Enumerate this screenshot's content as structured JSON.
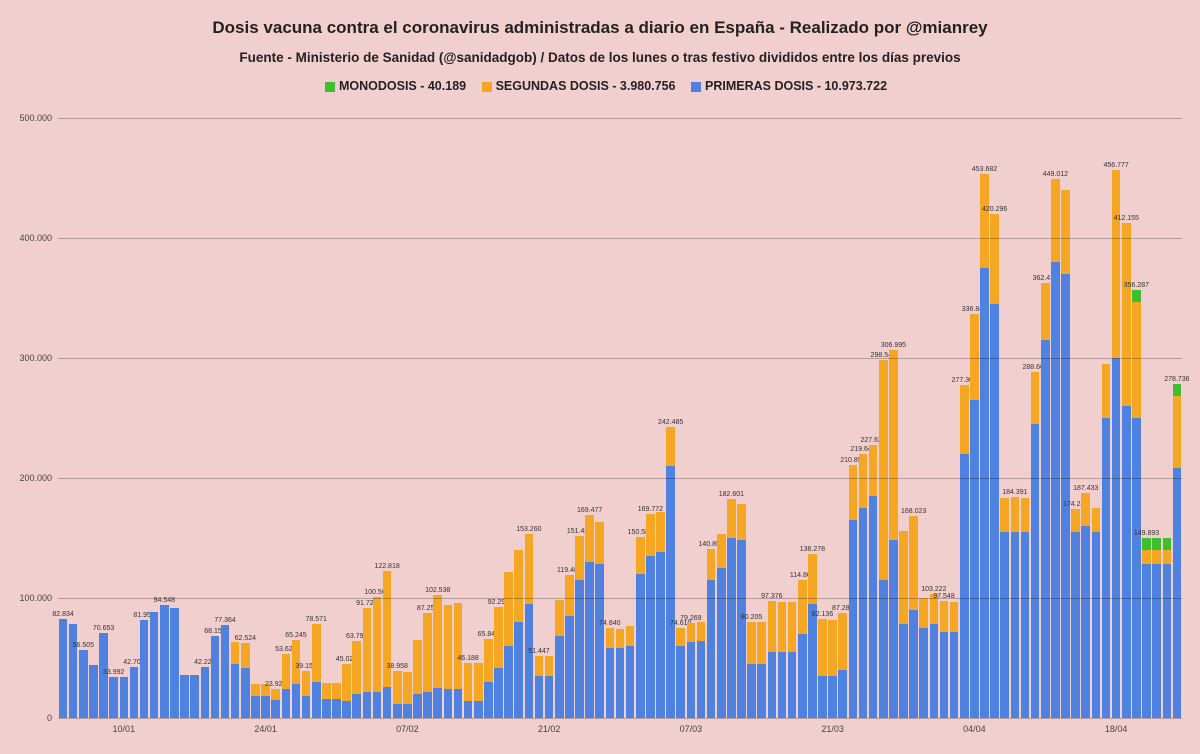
{
  "background_color": "#f2cfcf",
  "title": "Dosis vacuna contra el coronavirus administradas a diario en España - Realizado por @mianrey",
  "title_fontsize": 17,
  "subtitle": "Fuente - Ministerio de Sanidad (@sanidadgob) / Datos de los lunes o tras festivo divididos entre los días previos",
  "subtitle_fontsize": 13.5,
  "legend": {
    "items": [
      {
        "label": "MONODOSIS - 40.189",
        "color": "#3fbf2f"
      },
      {
        "label": "SEGUNDAS DOSIS - 3.980.756",
        "color": "#f5a623"
      },
      {
        "label": "PRIMERAS DOSIS - 10.973.722",
        "color": "#4f81e0"
      }
    ],
    "fontsize": 12.5
  },
  "chart": {
    "type": "stacked-bar",
    "ylim": [
      0,
      500000
    ],
    "ytick_step": 100000,
    "ytick_format": "thousand_dot",
    "grid_color": "rgba(0,0,0,0.25)",
    "bar_gap_ratio": 0.15,
    "label_fontsize": 7,
    "axis_fontsize": 9,
    "series_colors": {
      "primeras": "#4f81e0",
      "segundas": "#f5a623",
      "monodosis": "#3fbf2f"
    },
    "x_ticks": [
      {
        "index": 6,
        "label": "10/01"
      },
      {
        "index": 20,
        "label": "24/01"
      },
      {
        "index": 34,
        "label": "07/02"
      },
      {
        "index": 48,
        "label": "21/02"
      },
      {
        "index": 62,
        "label": "07/03"
      },
      {
        "index": 76,
        "label": "21/03"
      },
      {
        "index": 90,
        "label": "04/04"
      },
      {
        "index": 104,
        "label": "18/04"
      }
    ],
    "bars": [
      {
        "label": "82.834",
        "primeras": 82834,
        "segundas": 0,
        "monodosis": 0
      },
      {
        "label": "",
        "primeras": 78000,
        "segundas": 0,
        "monodosis": 0
      },
      {
        "label": "56.505",
        "primeras": 56505,
        "segundas": 0,
        "monodosis": 0
      },
      {
        "label": "",
        "primeras": 44000,
        "segundas": 0,
        "monodosis": 0
      },
      {
        "label": "70.653",
        "primeras": 70653,
        "segundas": 0,
        "monodosis": 0
      },
      {
        "label": "33.992",
        "primeras": 33992,
        "segundas": 0,
        "monodosis": 0
      },
      {
        "label": "",
        "primeras": 34000,
        "segundas": 0,
        "monodosis": 0
      },
      {
        "label": "42.705",
        "primeras": 42705,
        "segundas": 0,
        "monodosis": 0
      },
      {
        "label": "81.950",
        "primeras": 81950,
        "segundas": 0,
        "monodosis": 0
      },
      {
        "label": "",
        "primeras": 88000,
        "segundas": 0,
        "monodosis": 0
      },
      {
        "label": "94.548",
        "primeras": 94548,
        "segundas": 0,
        "monodosis": 0
      },
      {
        "label": "",
        "primeras": 92000,
        "segundas": 0,
        "monodosis": 0
      },
      {
        "label": "",
        "primeras": 36000,
        "segundas": 0,
        "monodosis": 0
      },
      {
        "label": "",
        "primeras": 36000,
        "segundas": 0,
        "monodosis": 0
      },
      {
        "label": "42.226",
        "primeras": 42226,
        "segundas": 0,
        "monodosis": 0
      },
      {
        "label": "68.155",
        "primeras": 68155,
        "segundas": 0,
        "monodosis": 0
      },
      {
        "label": "77.364",
        "primeras": 77364,
        "segundas": 0,
        "monodosis": 0
      },
      {
        "label": "",
        "primeras": 45000,
        "segundas": 18000,
        "monodosis": 0
      },
      {
        "label": "62.524",
        "primeras": 42000,
        "segundas": 20524,
        "monodosis": 0
      },
      {
        "label": "",
        "primeras": 18000,
        "segundas": 10000,
        "monodosis": 0
      },
      {
        "label": "",
        "primeras": 18000,
        "segundas": 10000,
        "monodosis": 0
      },
      {
        "label": "23.923",
        "primeras": 15000,
        "segundas": 8923,
        "monodosis": 0
      },
      {
        "label": "53.623",
        "primeras": 24000,
        "segundas": 29623,
        "monodosis": 0
      },
      {
        "label": "65.245",
        "primeras": 28000,
        "segundas": 37245,
        "monodosis": 0
      },
      {
        "label": "39.157",
        "primeras": 18000,
        "segundas": 21157,
        "monodosis": 0
      },
      {
        "label": "78.571",
        "primeras": 30000,
        "segundas": 48571,
        "monodosis": 0
      },
      {
        "label": "",
        "primeras": 16000,
        "segundas": 13000,
        "monodosis": 0
      },
      {
        "label": "",
        "primeras": 16000,
        "segundas": 13000,
        "monodosis": 0
      },
      {
        "label": "45.024",
        "primeras": 14000,
        "segundas": 31024,
        "monodosis": 0
      },
      {
        "label": "63.793",
        "primeras": 20000,
        "segundas": 43793,
        "monodosis": 0
      },
      {
        "label": "91.724",
        "primeras": 22000,
        "segundas": 69724,
        "monodosis": 0
      },
      {
        "label": "100.564",
        "primeras": 22000,
        "segundas": 78564,
        "monodosis": 0
      },
      {
        "label": "122.818",
        "primeras": 26000,
        "segundas": 96818,
        "monodosis": 0
      },
      {
        "label": "38.958",
        "primeras": 12000,
        "segundas": 26958,
        "monodosis": 0
      },
      {
        "label": "",
        "primeras": 12000,
        "segundas": 26000,
        "monodosis": 0
      },
      {
        "label": "",
        "primeras": 20000,
        "segundas": 45000,
        "monodosis": 0
      },
      {
        "label": "87.258",
        "primeras": 22000,
        "segundas": 65258,
        "monodosis": 0
      },
      {
        "label": "102.538",
        "primeras": 25000,
        "segundas": 77538,
        "monodosis": 0
      },
      {
        "label": "",
        "primeras": 24000,
        "segundas": 70000,
        "monodosis": 0
      },
      {
        "label": "",
        "primeras": 24000,
        "segundas": 72000,
        "monodosis": 0
      },
      {
        "label": "46.188",
        "primeras": 14000,
        "segundas": 32188,
        "monodosis": 0
      },
      {
        "label": "",
        "primeras": 14000,
        "segundas": 32000,
        "monodosis": 0
      },
      {
        "label": "65.845",
        "primeras": 30000,
        "segundas": 35845,
        "monodosis": 0
      },
      {
        "label": "92.294",
        "primeras": 42000,
        "segundas": 50294,
        "monodosis": 0
      },
      {
        "label": "",
        "primeras": 60000,
        "segundas": 62000,
        "monodosis": 0
      },
      {
        "label": "",
        "primeras": 80000,
        "segundas": 60000,
        "monodosis": 0
      },
      {
        "label": "153.260",
        "primeras": 95000,
        "segundas": 58260,
        "monodosis": 0
      },
      {
        "label": "51.447",
        "primeras": 35000,
        "segundas": 16447,
        "monodosis": 0
      },
      {
        "label": "",
        "primeras": 35000,
        "segundas": 17000,
        "monodosis": 0
      },
      {
        "label": "",
        "primeras": 68000,
        "segundas": 30000,
        "monodosis": 0
      },
      {
        "label": "119.487",
        "primeras": 85000,
        "segundas": 34487,
        "monodosis": 0
      },
      {
        "label": "151.480",
        "primeras": 115000,
        "segundas": 36480,
        "monodosis": 0
      },
      {
        "label": "169.477",
        "primeras": 130000,
        "segundas": 39477,
        "monodosis": 0
      },
      {
        "label": "",
        "primeras": 128000,
        "segundas": 35000,
        "monodosis": 0
      },
      {
        "label": "74.840",
        "primeras": 58000,
        "segundas": 16840,
        "monodosis": 0
      },
      {
        "label": "",
        "primeras": 58000,
        "segundas": 16000,
        "monodosis": 0
      },
      {
        "label": "",
        "primeras": 60000,
        "segundas": 17000,
        "monodosis": 0
      },
      {
        "label": "150.586",
        "primeras": 120000,
        "segundas": 30586,
        "monodosis": 0
      },
      {
        "label": "169.772",
        "primeras": 135000,
        "segundas": 34772,
        "monodosis": 0
      },
      {
        "label": "",
        "primeras": 138000,
        "segundas": 34000,
        "monodosis": 0
      },
      {
        "label": "242.485",
        "primeras": 210000,
        "segundas": 32485,
        "monodosis": 0
      },
      {
        "label": "74.610",
        "primeras": 60000,
        "segundas": 14610,
        "monodosis": 0
      },
      {
        "label": "79.269",
        "primeras": 63000,
        "segundas": 16269,
        "monodosis": 0
      },
      {
        "label": "",
        "primeras": 64000,
        "segundas": 16000,
        "monodosis": 0
      },
      {
        "label": "140.857",
        "primeras": 115000,
        "segundas": 25857,
        "monodosis": 0
      },
      {
        "label": "",
        "primeras": 125000,
        "segundas": 28000,
        "monodosis": 0
      },
      {
        "label": "182.601",
        "primeras": 150000,
        "segundas": 32601,
        "monodosis": 0
      },
      {
        "label": "",
        "primeras": 148000,
        "segundas": 30000,
        "monodosis": 0
      },
      {
        "label": "80.205",
        "primeras": 45000,
        "segundas": 35205,
        "monodosis": 0
      },
      {
        "label": "",
        "primeras": 45000,
        "segundas": 35000,
        "monodosis": 0
      },
      {
        "label": "97.376",
        "primeras": 55000,
        "segundas": 42376,
        "monodosis": 0
      },
      {
        "label": "",
        "primeras": 55000,
        "segundas": 42000,
        "monodosis": 0
      },
      {
        "label": "",
        "primeras": 55000,
        "segundas": 42000,
        "monodosis": 0
      },
      {
        "label": "114.867",
        "primeras": 70000,
        "segundas": 44867,
        "monodosis": 0
      },
      {
        "label": "136.278",
        "primeras": 95000,
        "segundas": 41278,
        "monodosis": 0
      },
      {
        "label": "82.136",
        "primeras": 35000,
        "segundas": 47136,
        "monodosis": 0
      },
      {
        "label": "",
        "primeras": 35000,
        "segundas": 47000,
        "monodosis": 0
      },
      {
        "label": "87.288",
        "primeras": 40000,
        "segundas": 47288,
        "monodosis": 0
      },
      {
        "label": "210.897",
        "primeras": 165000,
        "segundas": 45897,
        "monodosis": 0
      },
      {
        "label": "219.643",
        "primeras": 175000,
        "segundas": 44643,
        "monodosis": 0
      },
      {
        "label": "227.635",
        "primeras": 185000,
        "segundas": 42635,
        "monodosis": 0
      },
      {
        "label": "298.549",
        "primeras": 115000,
        "segundas": 183549,
        "monodosis": 0
      },
      {
        "label": "306.995",
        "primeras": 148000,
        "segundas": 158995,
        "monodosis": 0
      },
      {
        "label": "",
        "primeras": 78000,
        "segundas": 78000,
        "monodosis": 0
      },
      {
        "label": "168.023",
        "primeras": 90000,
        "segundas": 78023,
        "monodosis": 0
      },
      {
        "label": "",
        "primeras": 75000,
        "segundas": 25000,
        "monodosis": 0
      },
      {
        "label": "103.222",
        "primeras": 78000,
        "segundas": 25222,
        "monodosis": 0
      },
      {
        "label": "97.548",
        "primeras": 72000,
        "segundas": 25548,
        "monodosis": 0
      },
      {
        "label": "",
        "primeras": 72000,
        "segundas": 25000,
        "monodosis": 0
      },
      {
        "label": "277.307",
        "primeras": 220000,
        "segundas": 57307,
        "monodosis": 0
      },
      {
        "label": "336.846",
        "primeras": 265000,
        "segundas": 71846,
        "monodosis": 0
      },
      {
        "label": "453.682",
        "primeras": 375000,
        "segundas": 78682,
        "monodosis": 0
      },
      {
        "label": "420.296",
        "primeras": 345000,
        "segundas": 75296,
        "monodosis": 0
      },
      {
        "label": "",
        "primeras": 155000,
        "segundas": 28000,
        "monodosis": 0
      },
      {
        "label": "184.391",
        "primeras": 155000,
        "segundas": 29391,
        "monodosis": 0
      },
      {
        "label": "",
        "primeras": 155000,
        "segundas": 28000,
        "monodosis": 0
      },
      {
        "label": "288.660",
        "primeras": 245000,
        "segundas": 43660,
        "monodosis": 0
      },
      {
        "label": "362.416",
        "primeras": 315000,
        "segundas": 47416,
        "monodosis": 0
      },
      {
        "label": "449.012",
        "primeras": 380000,
        "segundas": 69012,
        "monodosis": 0
      },
      {
        "label": "",
        "primeras": 370000,
        "segundas": 70000,
        "monodosis": 0
      },
      {
        "label": "174.281",
        "primeras": 155000,
        "segundas": 19281,
        "monodosis": 0
      },
      {
        "label": "187.433",
        "primeras": 160000,
        "segundas": 27433,
        "monodosis": 0
      },
      {
        "label": "",
        "primeras": 155000,
        "segundas": 20000,
        "monodosis": 0
      },
      {
        "label": "",
        "primeras": 250000,
        "segundas": 45000,
        "monodosis": 0
      },
      {
        "label": "456.777",
        "primeras": 300000,
        "segundas": 156777,
        "monodosis": 0
      },
      {
        "label": "412.155",
        "primeras": 260000,
        "segundas": 152155,
        "monodosis": 0
      },
      {
        "label": "356.287",
        "primeras": 250000,
        "segundas": 96287,
        "monodosis": 10000
      },
      {
        "label": "149.893",
        "primeras": 128000,
        "segundas": 11893,
        "monodosis": 10000
      },
      {
        "label": "",
        "primeras": 128000,
        "segundas": 12000,
        "monodosis": 10000
      },
      {
        "label": "",
        "primeras": 128000,
        "segundas": 12000,
        "monodosis": 10000
      },
      {
        "label": "278.736",
        "primeras": 208000,
        "segundas": 60736,
        "monodosis": 10000
      }
    ]
  }
}
